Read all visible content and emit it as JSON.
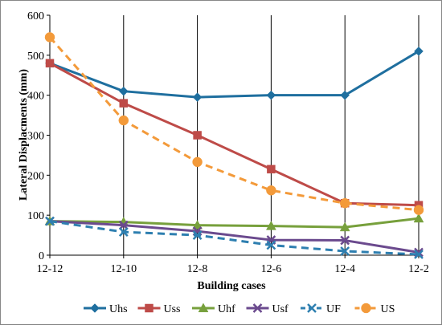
{
  "chart_data": {
    "type": "line",
    "title": "",
    "xlabel": "Building cases",
    "ylabel": "Lateral Displacments (mm)",
    "categories": [
      "12-12",
      "12-10",
      "12-8",
      "12-6",
      "12-4",
      "12-2"
    ],
    "ylim": [
      0,
      600
    ],
    "yticks": [
      "0",
      "100",
      "200",
      "300",
      "400",
      "500",
      "600"
    ],
    "grid": "vertical lines at categories",
    "legend": "bottom",
    "series": [
      {
        "name": "Uhs",
        "values": [
          480,
          410,
          395,
          400,
          400,
          510
        ],
        "color": "#1f6f9f",
        "marker": "diamond",
        "dashed": false
      },
      {
        "name": "Uss",
        "values": [
          480,
          380,
          300,
          215,
          130,
          125
        ],
        "color": "#be4b48",
        "marker": "square",
        "dashed": false
      },
      {
        "name": "Uhf",
        "values": [
          85,
          83,
          75,
          73,
          70,
          92
        ],
        "color": "#77a03c",
        "marker": "triangle",
        "dashed": false
      },
      {
        "name": "Usf",
        "values": [
          85,
          75,
          60,
          38,
          37,
          7
        ],
        "color": "#6b4a8e",
        "marker": "x",
        "dashed": false
      },
      {
        "name": "UF",
        "values": [
          85,
          58,
          50,
          25,
          10,
          2
        ],
        "color": "#2e7fb0",
        "marker": "x",
        "dashed": true
      },
      {
        "name": "US",
        "values": [
          545,
          337,
          233,
          162,
          130,
          113
        ],
        "color": "#f39a3a",
        "marker": "circle",
        "dashed": true
      }
    ]
  }
}
